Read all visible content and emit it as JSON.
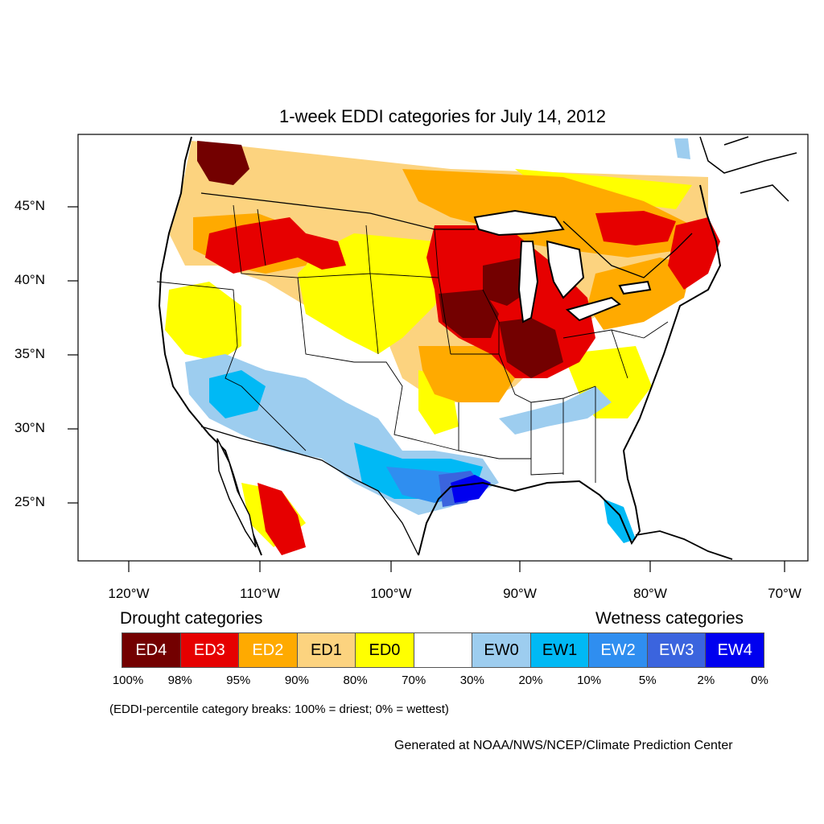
{
  "title": "1-week EDDI categories for July 14, 2012",
  "y_axis_labels": [
    "45°N",
    "40°N",
    "35°N",
    "30°N",
    "25°N"
  ],
  "x_axis_labels": [
    "120°W",
    "110°W",
    "100°W",
    "90°W",
    "80°W",
    "70°W"
  ],
  "legend": {
    "drought_heading": "Drought categories",
    "wetness_heading": "Wetness categories",
    "categories": [
      {
        "label": "ED4",
        "color": "#730000",
        "text_color": "#ffffff"
      },
      {
        "label": "ED3",
        "color": "#e60000",
        "text_color": "#ffffff"
      },
      {
        "label": "ED2",
        "color": "#ffaa00",
        "text_color": "#ffffff"
      },
      {
        "label": "ED1",
        "color": "#fcd37f",
        "text_color": "#000000"
      },
      {
        "label": "ED0",
        "color": "#ffff00",
        "text_color": "#000000"
      },
      {
        "label": "",
        "color": "#ffffff",
        "text_color": "#000000"
      },
      {
        "label": "EW0",
        "color": "#9dcdef",
        "text_color": "#000000"
      },
      {
        "label": "EW1",
        "color": "#00b9f5",
        "text_color": "#000000"
      },
      {
        "label": "EW2",
        "color": "#2f8ef0",
        "text_color": "#ffffff"
      },
      {
        "label": "EW3",
        "color": "#3b64de",
        "text_color": "#ffffff"
      },
      {
        "label": "EW4",
        "color": "#0000ef",
        "text_color": "#ffffff"
      }
    ],
    "breaks": [
      "100%",
      "98%",
      "95%",
      "90%",
      "80%",
      "70%",
      "30%",
      "20%",
      "10%",
      "5%",
      "2%",
      "0%"
    ]
  },
  "note": "(EDDI-percentile category breaks: 100% = driest; 0% = wettest)",
  "credit": "Generated at NOAA/NWS/NCEP/Climate Prediction Center"
}
